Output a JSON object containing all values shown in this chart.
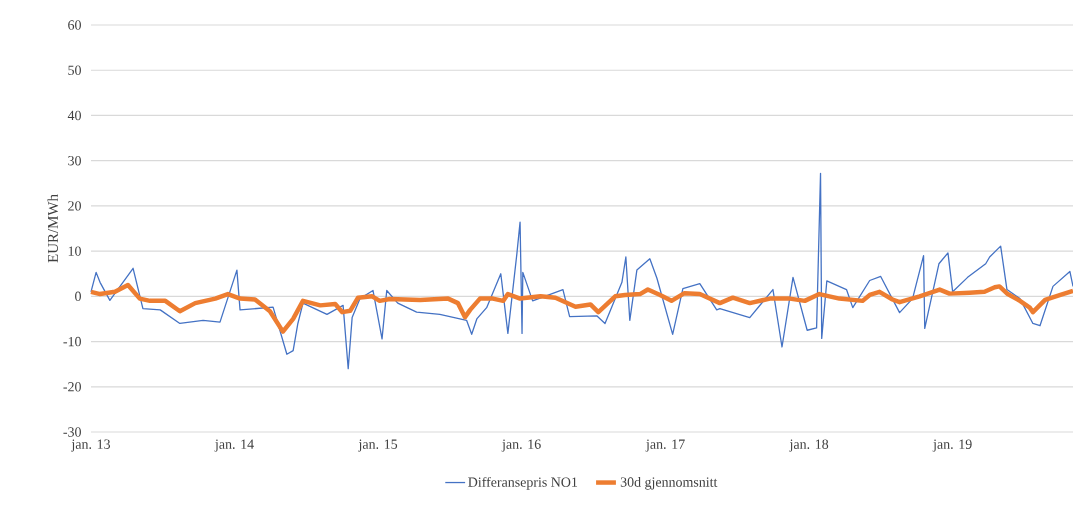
{
  "chart_data": {
    "type": "line",
    "ylabel": "EUR/MWh",
    "xlim": [
      "2013-01-01",
      "2019-11-03"
    ],
    "ylim": [
      -30,
      60
    ],
    "xticks": [
      {
        "value": "2013-01-01",
        "label": "jan. 13"
      },
      {
        "value": "2014-01-01",
        "label": "jan. 14"
      },
      {
        "value": "2015-01-01",
        "label": "jan. 15"
      },
      {
        "value": "2016-01-01",
        "label": "jan. 16"
      },
      {
        "value": "2017-01-01",
        "label": "jan. 17"
      },
      {
        "value": "2018-01-01",
        "label": "jan. 18"
      },
      {
        "value": "2019-01-01",
        "label": "jan. 19"
      }
    ],
    "yticks": [
      -30,
      -20,
      -10,
      0,
      10,
      20,
      30,
      40,
      50,
      60
    ],
    "grid": "y",
    "legend": "bottom",
    "series": [
      {
        "name": "Differansepris NO1",
        "color": "#4472c4",
        "x": [
          "2013-01-01",
          "2013-01-14",
          "2013-01-24",
          "2013-02-18",
          "2013-04-18",
          "2013-05-13",
          "2013-06-26",
          "2013-08-15",
          "2013-10-13",
          "2013-11-25",
          "2014-01-07",
          "2014-01-15",
          "2014-04-09",
          "2014-05-14",
          "2014-05-30",
          "2014-06-11",
          "2014-06-24",
          "2014-08-24",
          "2014-10-04",
          "2014-10-17",
          "2014-10-27",
          "2014-11-16",
          "2014-12-19",
          "2015-01-11",
          "2015-01-23",
          "2015-02-20",
          "2015-04-09",
          "2015-06-07",
          "2015-08-14",
          "2015-08-27",
          "2015-09-09",
          "2015-10-04",
          "2015-11-09",
          "2015-11-27",
          "2015-12-20",
          "2015-12-28",
          "2016-01-02",
          "2016-01-04",
          "2016-01-29",
          "2016-04-15",
          "2016-05-02",
          "2016-07-10",
          "2016-07-31",
          "2016-09-12",
          "2016-09-22",
          "2016-10-02",
          "2016-10-20",
          "2016-11-22",
          "2016-12-10",
          "2017-01-19",
          "2017-02-14",
          "2017-03-29",
          "2017-05-11",
          "2017-05-19",
          "2017-08-03",
          "2017-10-01",
          "2017-10-24",
          "2017-11-21",
          "2017-12-27",
          "2018-01-20",
          "2018-01-30",
          "2018-02-02",
          "2018-02-15",
          "2018-04-06",
          "2018-04-22",
          "2018-06-04",
          "2018-07-02",
          "2018-08-19",
          "2018-09-21",
          "2018-10-19",
          "2018-10-22",
          "2018-11-27",
          "2018-12-20",
          "2019-01-01",
          "2019-02-08",
          "2019-03-26",
          "2019-04-05",
          "2019-05-03",
          "2019-05-19",
          "2019-06-21",
          "2019-07-24",
          "2019-08-11",
          "2019-09-13",
          "2019-10-26",
          "2019-11-03"
        ],
        "values": [
          1,
          5.3,
          3.1,
          -0.9,
          6.2,
          -2.7,
          -3,
          -6,
          -5.3,
          -5.7,
          5.8,
          -3,
          -2.4,
          -12.8,
          -12,
          -6,
          -1.5,
          -4,
          -2,
          -16,
          -4.7,
          -0.5,
          1.3,
          -9.4,
          1.3,
          -1.5,
          -3.5,
          -4,
          -5.3,
          -8.4,
          -5,
          -2.5,
          5,
          -8.2,
          9.5,
          16.4,
          -8.2,
          5.3,
          -1,
          1.5,
          -4.5,
          -4.3,
          -6,
          3.1,
          8.7,
          -5.3,
          5.8,
          8.3,
          4,
          -8.4,
          1.7,
          2.8,
          -3,
          -2.7,
          -4.7,
          1.5,
          -11.2,
          4.2,
          -7.5,
          -7,
          27.2,
          -9.3,
          3.4,
          1.5,
          -2.5,
          3.5,
          4.4,
          -3.6,
          -0.5,
          9,
          -7.1,
          7.2,
          9.6,
          1,
          4.2,
          7.2,
          8.7,
          11.1,
          1.5,
          -0.5,
          -6,
          -6.5,
          2.2,
          5.5,
          2.2
        ]
      },
      {
        "name": "30d gjennomsnitt",
        "color": "#ed7d31",
        "x": [
          "2013-01-01",
          "2013-01-24",
          "2013-03-03",
          "2013-04-05",
          "2013-05-05",
          "2013-05-31",
          "2013-07-09",
          "2013-08-15",
          "2013-09-23",
          "2013-11-13",
          "2013-12-15",
          "2014-01-15",
          "2014-02-22",
          "2014-04-01",
          "2014-05-04",
          "2014-05-30",
          "2014-06-24",
          "2014-08-07",
          "2014-09-14",
          "2014-10-02",
          "2014-10-22",
          "2014-11-11",
          "2014-12-17",
          "2015-01-05",
          "2015-01-31",
          "2015-04-18",
          "2015-06-28",
          "2015-07-23",
          "2015-08-10",
          "2015-08-23",
          "2015-09-17",
          "2015-10-20",
          "2015-11-15",
          "2015-11-27",
          "2015-12-28",
          "2016-02-18",
          "2016-03-27",
          "2016-05-17",
          "2016-06-24",
          "2016-07-14",
          "2016-08-26",
          "2016-09-20",
          "2016-10-28",
          "2016-11-17",
          "2016-12-18",
          "2017-01-16",
          "2017-02-18",
          "2017-03-29",
          "2017-05-19",
          "2017-06-21",
          "2017-08-03",
          "2017-09-23",
          "2017-11-13",
          "2017-12-21",
          "2018-01-27",
          "2018-03-19",
          "2018-05-17",
          "2018-06-04",
          "2018-06-29",
          "2018-08-01",
          "2018-08-19",
          "2018-10-09",
          "2018-11-29",
          "2018-12-24",
          "2019-02-13",
          "2019-03-23",
          "2019-04-18",
          "2019-04-30",
          "2019-05-21",
          "2019-06-21",
          "2019-07-16",
          "2019-07-24",
          "2019-08-24",
          "2019-10-02",
          "2019-11-03"
        ],
        "values": [
          1,
          0.5,
          1,
          2.5,
          -0.5,
          -1,
          -1,
          -3.3,
          -1.5,
          -0.5,
          0.5,
          -0.5,
          -0.7,
          -3.3,
          -7.8,
          -5,
          -1,
          -2,
          -1.7,
          -3.5,
          -3.2,
          -0.3,
          0,
          -1,
          -0.6,
          -0.8,
          -0.5,
          -1.5,
          -4.6,
          -3,
          -0.5,
          -0.5,
          -1,
          0.5,
          -0.5,
          0,
          -0.3,
          -2.3,
          -1.8,
          -3.5,
          0,
          0.3,
          0.5,
          1.5,
          0.3,
          -1,
          0.7,
          0.5,
          -1.5,
          -0.3,
          -1.5,
          -0.5,
          -0.5,
          -1,
          0.5,
          -0.5,
          -1,
          0.3,
          1,
          -0.7,
          -1.3,
          0,
          1.5,
          0.6,
          0.8,
          1,
          2,
          2.2,
          0.5,
          -1,
          -2.5,
          -3.5,
          -0.8,
          0.3,
          1.2
        ]
      }
    ]
  }
}
